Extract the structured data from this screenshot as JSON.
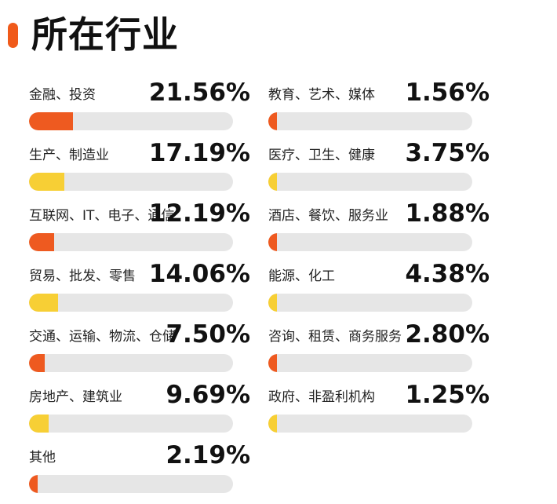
{
  "title": "所在行业",
  "colors": {
    "accent": "#f05a1a",
    "orange": "#ee5a20",
    "yellow": "#f7cf35",
    "track": "#e6e6e6"
  },
  "chart_data": {
    "type": "bar",
    "title": "所在行业",
    "unit": "%",
    "items": [
      {
        "label": "金融、投资",
        "value": 21.56,
        "value_text": "21.56%",
        "color": "#ee5a20"
      },
      {
        "label": "生产、制造业",
        "value": 17.19,
        "value_text": "17.19%",
        "color": "#f7cf35"
      },
      {
        "label": "互联网、IT、电子、通信",
        "value": 12.19,
        "value_text": "12.19%",
        "color": "#ee5a20"
      },
      {
        "label": "贸易、批发、零售",
        "value": 14.06,
        "value_text": "14.06%",
        "color": "#f7cf35"
      },
      {
        "label": "交通、运输、物流、仓储",
        "value": 7.5,
        "value_text": "7.50%",
        "color": "#ee5a20"
      },
      {
        "label": "房地产、建筑业",
        "value": 9.69,
        "value_text": "9.69%",
        "color": "#f7cf35"
      },
      {
        "label": "其他",
        "value": 2.19,
        "value_text": "2.19%",
        "color": "#ee5a20"
      },
      {
        "label": "教育、艺术、媒体",
        "value": 1.56,
        "value_text": "1.56%",
        "color": "#ee5a20"
      },
      {
        "label": "医疗、卫生、健康",
        "value": 3.75,
        "value_text": "3.75%",
        "color": "#f7cf35"
      },
      {
        "label": "酒店、餐饮、服务业",
        "value": 1.88,
        "value_text": "1.88%",
        "color": "#ee5a20"
      },
      {
        "label": "能源、化工",
        "value": 4.38,
        "value_text": "4.38%",
        "color": "#f7cf35"
      },
      {
        "label": "咨询、租赁、商务服务",
        "value": 2.8,
        "value_text": "2.80%",
        "color": "#ee5a20"
      },
      {
        "label": "政府、非盈利机构",
        "value": 1.25,
        "value_text": "1.25%",
        "color": "#f7cf35"
      }
    ]
  }
}
